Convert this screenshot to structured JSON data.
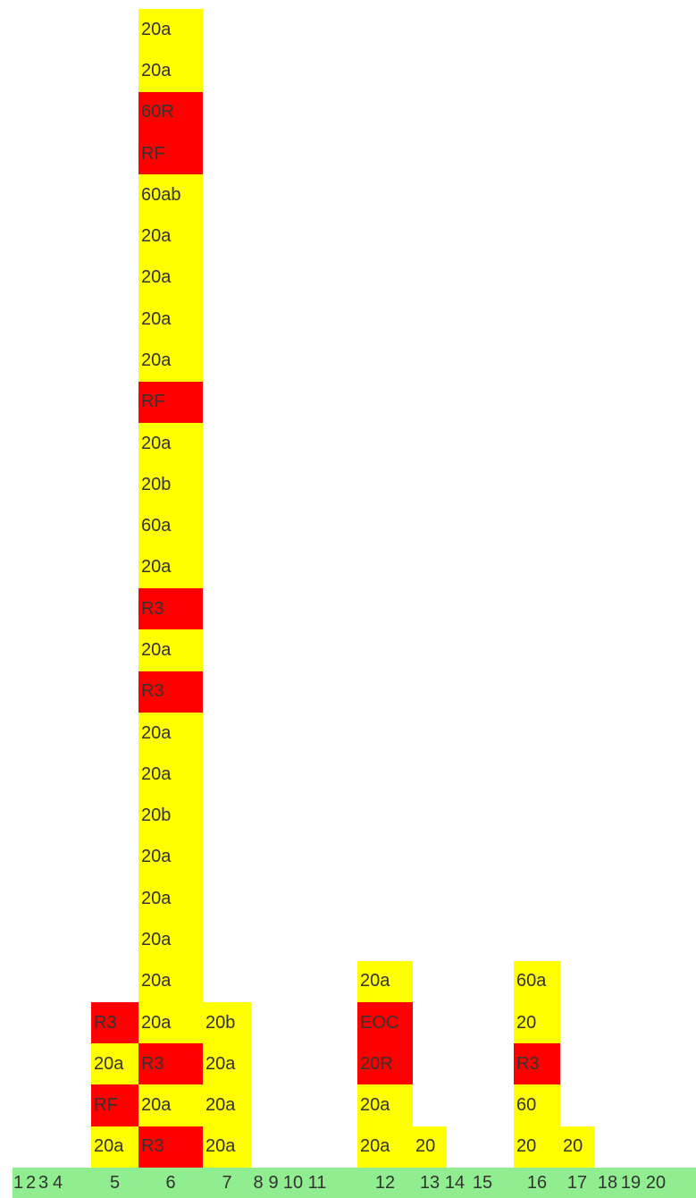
{
  "columns": [
    {
      "label": "1",
      "cells": []
    },
    {
      "label": "2",
      "cells": []
    },
    {
      "label": "3",
      "cells": []
    },
    {
      "label": "4",
      "cells": []
    },
    {
      "label": "5",
      "cells": [
        {
          "text": "R3",
          "color": "#ff0000"
        },
        {
          "text": "20a",
          "color": "#ffff00"
        },
        {
          "text": "RF",
          "color": "#ff0000"
        },
        {
          "text": "20a",
          "color": "#ffff00"
        }
      ]
    },
    {
      "label": "6",
      "cells": [
        {
          "text": "20a",
          "color": "#ffff00"
        },
        {
          "text": "20a",
          "color": "#ffff00"
        },
        {
          "text": "60R",
          "color": "#ff0000"
        },
        {
          "text": "RF",
          "color": "#ff0000"
        },
        {
          "text": "60ab",
          "color": "#ffff00"
        },
        {
          "text": "20a",
          "color": "#ffff00"
        },
        {
          "text": "20a",
          "color": "#ffff00"
        },
        {
          "text": "20a",
          "color": "#ffff00"
        },
        {
          "text": "20a",
          "color": "#ffff00"
        },
        {
          "text": "RF",
          "color": "#ff0000"
        },
        {
          "text": "20a",
          "color": "#ffff00"
        },
        {
          "text": "20b",
          "color": "#ffff00"
        },
        {
          "text": "60a",
          "color": "#ffff00"
        },
        {
          "text": "20a",
          "color": "#ffff00"
        },
        {
          "text": "R3",
          "color": "#ff0000"
        },
        {
          "text": "20a",
          "color": "#ffff00"
        },
        {
          "text": "R3",
          "color": "#ff0000"
        },
        {
          "text": "20a",
          "color": "#ffff00"
        },
        {
          "text": "20a",
          "color": "#ffff00"
        },
        {
          "text": "20b",
          "color": "#ffff00"
        },
        {
          "text": "20a",
          "color": "#ffff00"
        },
        {
          "text": "20a",
          "color": "#ffff00"
        },
        {
          "text": "20a",
          "color": "#ffff00"
        },
        {
          "text": "20a",
          "color": "#ffff00"
        },
        {
          "text": "20a",
          "color": "#ffff00"
        },
        {
          "text": "R3",
          "color": "#ff0000"
        },
        {
          "text": "20a",
          "color": "#ffff00"
        },
        {
          "text": "R3",
          "color": "#ff0000"
        }
      ]
    },
    {
      "label": "7",
      "cells": [
        {
          "text": "20b",
          "color": "#ffff00"
        },
        {
          "text": "20a",
          "color": "#ffff00"
        },
        {
          "text": "20a",
          "color": "#ffff00"
        },
        {
          "text": "20a",
          "color": "#ffff00"
        }
      ]
    },
    {
      "label": "8",
      "cells": []
    },
    {
      "label": "9",
      "cells": []
    },
    {
      "label": "10",
      "cells": []
    },
    {
      "label": "11",
      "cells": []
    },
    {
      "label": "12",
      "cells": [
        {
          "text": "20a",
          "color": "#ffff00"
        },
        {
          "text": "EOC",
          "color": "#ff0000"
        },
        {
          "text": "20R",
          "color": "#ff0000"
        },
        {
          "text": "20a",
          "color": "#ffff00"
        },
        {
          "text": "20a",
          "color": "#ffff00"
        }
      ]
    },
    {
      "label": "13",
      "cells": [
        {
          "text": "20",
          "color": "#ffff00"
        }
      ]
    },
    {
      "label": "14",
      "cells": []
    },
    {
      "label": "15",
      "cells": []
    },
    {
      "label": "16",
      "cells": [
        {
          "text": "60a",
          "color": "#ffff00"
        },
        {
          "text": "20",
          "color": "#ffff00"
        },
        {
          "text": "R3",
          "color": "#ff0000"
        },
        {
          "text": "60",
          "color": "#ffff00"
        },
        {
          "text": "20",
          "color": "#ffff00"
        }
      ]
    },
    {
      "label": "17",
      "cells": [
        {
          "text": "20",
          "color": "#ffff00"
        }
      ]
    },
    {
      "label": "18",
      "cells": []
    },
    {
      "label": "19",
      "cells": []
    },
    {
      "label": "20",
      "cells": []
    }
  ]
}
